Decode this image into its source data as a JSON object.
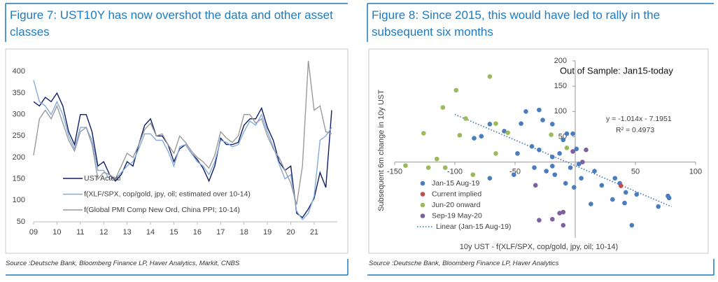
{
  "chart_data": [
    {
      "type": "line",
      "title": "Figure 7: UST10Y has now overshot the data and other asset classes",
      "source": "Source :Deutsche Bank, Bloomberg Finance LP, Haver Analytics, Markit, CNBS",
      "x": [
        2009,
        2009.25,
        2009.5,
        2009.75,
        2010,
        2010.25,
        2010.5,
        2010.75,
        2011,
        2011.25,
        2011.5,
        2011.75,
        2012,
        2012.25,
        2012.5,
        2012.75,
        2013,
        2013.25,
        2013.5,
        2013.75,
        2014,
        2014.25,
        2014.5,
        2014.75,
        2015,
        2015.25,
        2015.5,
        2015.75,
        2016,
        2016.25,
        2016.5,
        2016.75,
        2017,
        2017.25,
        2017.5,
        2017.75,
        2018,
        2018.25,
        2018.5,
        2018.75,
        2019,
        2019.25,
        2019.5,
        2019.75,
        2020,
        2020.25,
        2020.5,
        2020.75,
        2021,
        2021.25,
        2021.5,
        2021.75
      ],
      "xlim": [
        2009,
        2021.75
      ],
      "xticks": [
        {
          "value": 2009,
          "label": "09"
        },
        {
          "value": 2010,
          "label": "10"
        },
        {
          "value": 2011,
          "label": "11"
        },
        {
          "value": 2012,
          "label": "12"
        },
        {
          "value": 2013,
          "label": "13"
        },
        {
          "value": 2014,
          "label": "14"
        },
        {
          "value": 2015,
          "label": "15"
        },
        {
          "value": 2016,
          "label": "16"
        },
        {
          "value": 2017,
          "label": "17"
        },
        {
          "value": 2018,
          "label": "18"
        },
        {
          "value": 2019,
          "label": "19"
        },
        {
          "value": 2020,
          "label": "20"
        },
        {
          "value": 2021,
          "label": "21"
        }
      ],
      "ylim": [
        50,
        425
      ],
      "yticks": [
        50,
        100,
        150,
        200,
        250,
        300,
        350,
        400
      ],
      "grid": false,
      "legend": "lower-left",
      "series": [
        {
          "name": "UST Actual",
          "color": "#101c64",
          "values": [
            330,
            320,
            340,
            330,
            350,
            320,
            260,
            230,
            300,
            300,
            260,
            180,
            190,
            160,
            145,
            160,
            190,
            180,
            230,
            275,
            290,
            250,
            250,
            230,
            190,
            220,
            230,
            210,
            195,
            175,
            145,
            180,
            245,
            230,
            230,
            235,
            275,
            290,
            290,
            315,
            270,
            240,
            190,
            170,
            180,
            70,
            60,
            80,
            105,
            165,
            130,
            310
          ]
        },
        {
          "name": "f(XLF/SPX, cop/gold, jpy, oil;  estimated over 10-14)",
          "color": "#82acdc",
          "values": [
            380,
            330,
            320,
            300,
            330,
            300,
            250,
            220,
            270,
            270,
            240,
            170,
            170,
            150,
            150,
            165,
            180,
            190,
            220,
            255,
            255,
            240,
            240,
            215,
            180,
            225,
            230,
            210,
            190,
            180,
            160,
            190,
            240,
            235,
            225,
            230,
            260,
            285,
            275,
            300,
            260,
            225,
            185,
            150,
            160,
            75,
            55,
            70,
            110,
            240,
            250,
            270
          ]
        },
        {
          "name": "f(Global PMI Comp New Ord, China PPI; 10-14)",
          "color": "#9a9a9a",
          "values": [
            205,
            290,
            310,
            290,
            320,
            280,
            240,
            215,
            260,
            270,
            230,
            150,
            165,
            160,
            150,
            180,
            210,
            200,
            230,
            265,
            280,
            250,
            255,
            230,
            210,
            250,
            235,
            215,
            200,
            190,
            175,
            205,
            260,
            245,
            235,
            250,
            300,
            300,
            280,
            290,
            250,
            220,
            200,
            170,
            140,
            90,
            180,
            425,
            310,
            320,
            260,
            255
          ]
        }
      ]
    },
    {
      "type": "scatter",
      "title": "Figure 8: Since 2015, this would have led to rally in the subsequent six months",
      "source": "Source :Deutsche Bank, Bloomberg Finance LP, Haver Analytics",
      "x_label": "10y UST - f(XLF/SPX, cop/gold, jpy, oil; 10-14)",
      "y_label": "Subsequent 6m change in 10y UST",
      "annotation": "Out of Sample: Jan15-today",
      "xlim": [
        -150,
        100
      ],
      "xticks": [
        -150,
        -100,
        -50,
        50,
        100
      ],
      "ylim": [
        -150,
        200
      ],
      "yticks": [
        50,
        100,
        150,
        200
      ],
      "grid": false,
      "legend": "lower-left",
      "series": [
        {
          "name": "Jan-15 Aug-19",
          "color": "#4a7cc0",
          "x": [
            -41,
            -30,
            -45,
            -71,
            -78,
            -84,
            -59,
            -27,
            -19,
            -7,
            -2,
            -36,
            -30,
            -48,
            -19,
            -13,
            -10,
            -34,
            -24,
            -17,
            -4,
            3,
            16,
            33,
            37,
            22,
            5,
            -1,
            -8,
            -19,
            -71,
            -51,
            42,
            51,
            13,
            31,
            41,
            69,
            77,
            78,
            47,
            1
          ],
          "values": [
            100,
            103,
            76,
            75,
            51,
            47,
            61,
            83,
            75,
            56,
            56,
            31,
            24,
            17,
            10,
            17,
            44,
            -11,
            -18,
            -25,
            -11,
            -4,
            -18,
            -32,
            -42,
            -46,
            -32,
            -50,
            -42,
            -8,
            -32,
            -25,
            -60,
            -64,
            -83,
            -74,
            -81,
            -88,
            -67,
            -71,
            -125,
            26
          ]
        },
        {
          "name": "Current implied",
          "color": "#c0504d",
          "x": [
            38
          ],
          "values": [
            -47
          ]
        },
        {
          "name": "Jun-20 onward",
          "color": "#9bbb59",
          "x": [
            -71,
            -99,
            -110,
            -91,
            -126,
            -96,
            -66,
            -56,
            -20,
            -115,
            -141,
            -122,
            -108,
            -85,
            -66,
            -7
          ],
          "values": [
            169,
            142,
            108,
            86,
            57,
            53,
            76,
            58,
            54,
            6,
            -7,
            -11,
            -11,
            -25,
            17,
            28
          ]
        },
        {
          "name": "Sep-19 May-20",
          "color": "#7f5f9f",
          "x": [
            -33,
            -2,
            9,
            6,
            -10,
            -13,
            -19,
            -10,
            -30
          ],
          "values": [
            -46,
            21,
            24,
            0,
            -99,
            -101,
            -113,
            -125,
            -115
          ]
        }
      ],
      "trendline": {
        "name": "Linear (Jan-15 Aug-19)",
        "color": "#3b6fb5",
        "slope": -1.014,
        "intercept": -7.1951,
        "xrange": [
          -100,
          80
        ],
        "equation_label": "y = -1.014x - 7.1951",
        "r2_label": "R² = 0.4973"
      }
    }
  ]
}
